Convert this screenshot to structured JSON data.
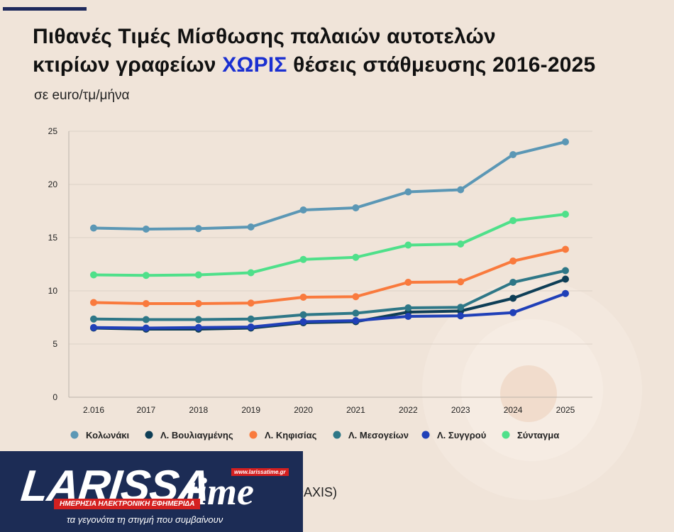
{
  "header": {
    "title_line1": "Πιθανές Τιμές Μίσθωσης παλαιών αυτοτελών",
    "title_line2_pre": "κτιρίων γραφείων ",
    "title_line2_highlight": "ΧΩΡΙΣ",
    "title_line2_post": " θέσεις στάθμευσης 2016-2025",
    "subtitle": "σε euro/τμ/μήνα"
  },
  "source_text": "DAXIS)",
  "logo": {
    "word": "LARISSA",
    "word2": "time",
    "url": "www.larissatime.gr",
    "band": "ΗΜΕΡΗΣΙΑ ΗΛΕΚΤΡΟΝΙΚΗ ΕΦΗΜΕΡΙΔΑ",
    "tagline": "τα γεγονότα τη στιγμή που συμβαίνουν"
  },
  "colors": {
    "background": "#f0e4d9",
    "title_highlight": "#1a2fd1",
    "logo_bg": "#1c2c55",
    "logo_red": "#d42020"
  },
  "chart_data": {
    "type": "line",
    "title": "Πιθανές Τιμές Μίσθωσης παλαιών αυτοτελών κτιρίων γραφείων ΧΩΡΙΣ θέσεις στάθμευσης 2016-2025",
    "ylabel": "σε euro/τμ/μήνα",
    "x": [
      "2.016",
      "2017",
      "2018",
      "2019",
      "2020",
      "2021",
      "2022",
      "2023",
      "2024",
      "2025"
    ],
    "ylim": [
      0,
      25
    ],
    "yticks": [
      0,
      5,
      10,
      15,
      20,
      25
    ],
    "grid": true,
    "legend": "bottom",
    "series": [
      {
        "name": "Κολωνάκι",
        "color": "#5b97b5",
        "values": [
          15.9,
          15.8,
          15.85,
          16.0,
          17.6,
          17.8,
          19.3,
          19.5,
          22.8,
          24.0
        ]
      },
      {
        "name": "Λ. Βουλιαγμένης",
        "color": "#0e3e56",
        "values": [
          6.5,
          6.4,
          6.4,
          6.5,
          7.0,
          7.1,
          8.0,
          8.1,
          9.3,
          11.1
        ]
      },
      {
        "name": "Λ. Κηφισίας",
        "color": "#f97a3d",
        "values": [
          8.9,
          8.8,
          8.8,
          8.85,
          9.4,
          9.45,
          10.8,
          10.85,
          12.8,
          13.9
        ]
      },
      {
        "name": "Λ. Μεσογείων",
        "color": "#2e7787",
        "values": [
          7.35,
          7.3,
          7.3,
          7.35,
          7.75,
          7.9,
          8.4,
          8.45,
          10.8,
          11.9
        ]
      },
      {
        "name": "Λ. Συγγρού",
        "color": "#2040b8",
        "values": [
          6.55,
          6.5,
          6.55,
          6.6,
          7.1,
          7.2,
          7.6,
          7.65,
          7.95,
          9.75
        ]
      },
      {
        "name": "Σύνταγμα",
        "color": "#4fe08a",
        "values": [
          11.5,
          11.45,
          11.5,
          11.7,
          12.95,
          13.15,
          14.3,
          14.4,
          16.6,
          17.2
        ]
      }
    ]
  }
}
